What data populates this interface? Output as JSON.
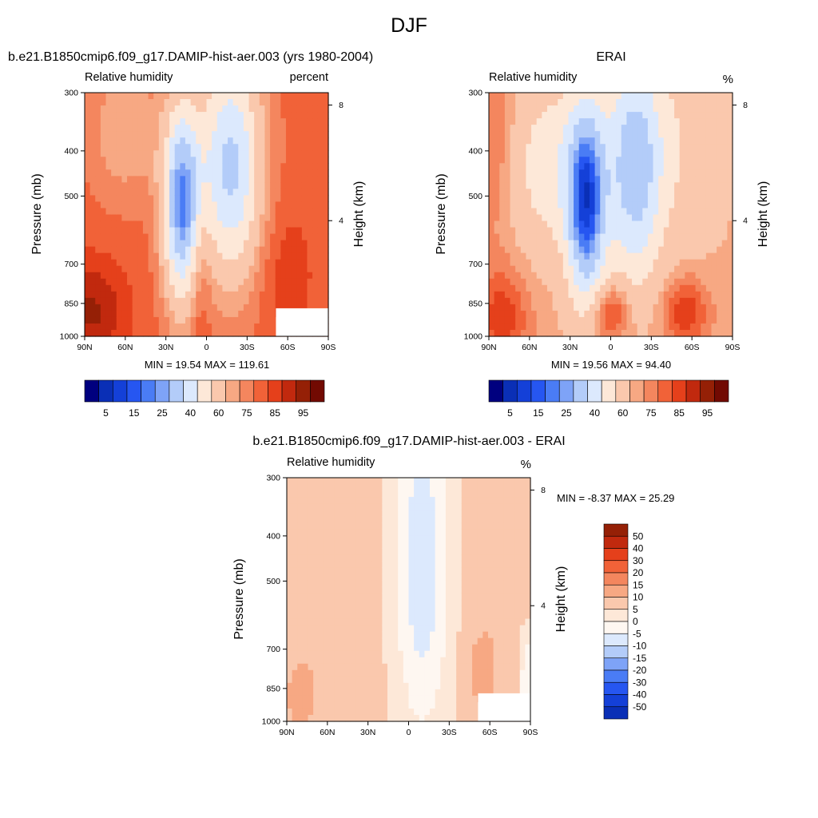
{
  "page_title": "DJF",
  "colors": {
    "abs_levels": [
      "#00007f",
      "#0a2fb6",
      "#1440d8",
      "#2656f1",
      "#4a7cf5",
      "#7ea3f7",
      "#b3ccf9",
      "#dce9fd",
      "#fde8d8",
      "#fac8ad",
      "#f7a883",
      "#f4865e",
      "#f16238",
      "#e5401b",
      "#c1290e",
      "#952006",
      "#720a02"
    ],
    "diff_levels": [
      "#00007f",
      "#0a2fb6",
      "#1440d8",
      "#2656f1",
      "#4a7cf5",
      "#7ea3f7",
      "#b3ccf9",
      "#dce9fd",
      "#fef7f1",
      "#fde8d8",
      "#fac8ad",
      "#f7a883",
      "#f4865e",
      "#f16238",
      "#e5401b",
      "#c1290e",
      "#952006"
    ]
  },
  "panels": [
    {
      "title": "b.e21.B1850cmip6.f09_g17.DAMIP-hist-aer.003 (yrs 1980-2004)",
      "left_label": "Relative humidity",
      "right_label": "percent",
      "ylabel": "Pressure (mb)",
      "ylabel_right": "Height (km)",
      "minmax": "MIN =  19.54  MAX = 119.61"
    },
    {
      "title": "ERAI",
      "left_label": "Relative humidity",
      "right_label": "%",
      "ylabel": "Pressure (mb)",
      "ylabel_right": "Height (km)",
      "minmax": "MIN =  19.56  MAX =  94.40"
    },
    {
      "title": "b.e21.B1850cmip6.f09_g17.DAMIP-hist-aer.003 - ERAI",
      "left_label": "Relative humidity",
      "right_label": "%",
      "ylabel": "Pressure (mb)",
      "ylabel_right": "Height (km)",
      "minmax": "MIN =  -8.37  MAX =  25.29"
    }
  ],
  "chart_data": [
    {
      "type": "heatmap",
      "title": "b.e21.B1850cmip6.f09_g17.DAMIP-hist-aer.003 (yrs 1980-2004)",
      "xlabel": "",
      "ylabel": "Pressure (mb)",
      "ylabel_right": "Height (km)",
      "x_ticks": [
        "90N",
        "60N",
        "30N",
        "0",
        "30S",
        "60S",
        "90S"
      ],
      "x_range": [
        90,
        -90
      ],
      "y_ticks": [
        300,
        400,
        500,
        700,
        850,
        1000
      ],
      "y_range": [
        1000,
        300
      ],
      "y_scale": "log",
      "y_right_ticks": [
        8,
        4
      ],
      "colorbar_labels": [
        "5",
        "15",
        "25",
        "40",
        "60",
        "75",
        "85",
        "95"
      ],
      "min": 19.54,
      "max": 119.61
    },
    {
      "type": "heatmap",
      "title": "ERAI",
      "ylabel": "Pressure (mb)",
      "ylabel_right": "Height (km)",
      "x_ticks": [
        "90N",
        "60N",
        "30N",
        "0",
        "30S",
        "60S",
        "90S"
      ],
      "x_range": [
        90,
        -90
      ],
      "y_ticks": [
        300,
        400,
        500,
        700,
        850,
        1000
      ],
      "y_range": [
        1000,
        300
      ],
      "y_scale": "log",
      "y_right_ticks": [
        8,
        4
      ],
      "colorbar_labels": [
        "5",
        "15",
        "25",
        "40",
        "60",
        "75",
        "85",
        "95"
      ],
      "min": 19.56,
      "max": 94.4
    },
    {
      "type": "heatmap",
      "title": "b.e21.B1850cmip6.f09_g17.DAMIP-hist-aer.003 - ERAI",
      "ylabel": "Pressure (mb)",
      "ylabel_right": "Height (km)",
      "x_ticks": [
        "90N",
        "60N",
        "30N",
        "0",
        "30S",
        "60S",
        "90S"
      ],
      "x_range": [
        90,
        -90
      ],
      "y_ticks": [
        300,
        400,
        500,
        700,
        850,
        1000
      ],
      "y_range": [
        1000,
        300
      ],
      "y_scale": "log",
      "y_right_ticks": [
        8,
        4
      ],
      "colorbar_labels": [
        "50",
        "40",
        "30",
        "20",
        "15",
        "10",
        "5",
        "0",
        "-5",
        "-10",
        "-15",
        "-20",
        "-30",
        "-40",
        "-50"
      ],
      "min": -8.37,
      "max": 25.29
    }
  ]
}
